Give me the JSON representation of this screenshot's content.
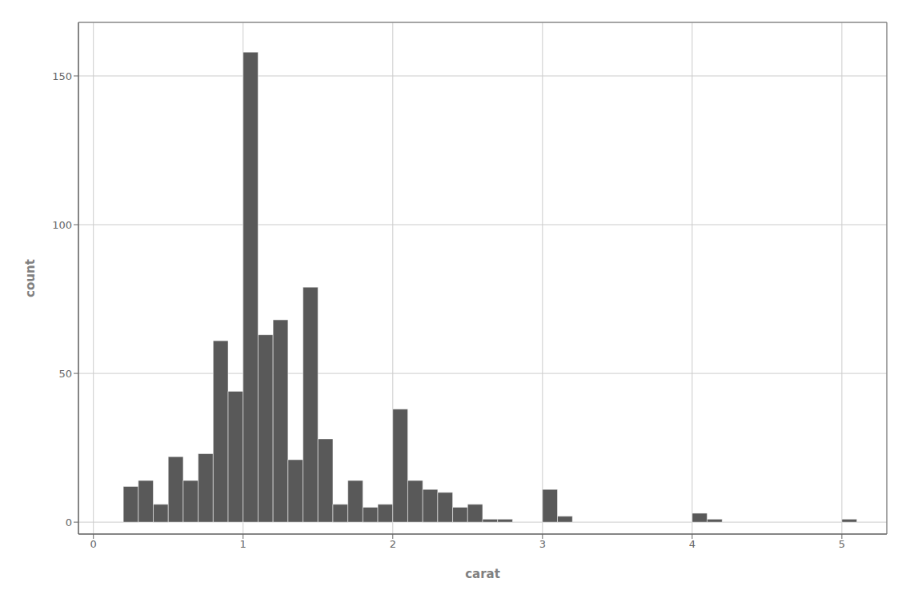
{
  "chart_data": {
    "type": "histogram",
    "xlabel": "carat",
    "ylabel": "count",
    "color": "#595959",
    "grid": true,
    "xlim": [
      -0.1,
      5.3
    ],
    "ylim": [
      -4,
      168
    ],
    "xticks": [
      0,
      1,
      2,
      3,
      4,
      5
    ],
    "yticks": [
      0,
      50,
      100,
      150
    ],
    "bin_width": 0.1,
    "x": [
      0.2,
      0.3,
      0.4,
      0.5,
      0.6,
      0.7,
      0.8,
      0.9,
      1.0,
      1.1,
      1.2,
      1.3,
      1.4,
      1.5,
      1.6,
      1.7,
      1.8,
      1.9,
      2.0,
      2.1,
      2.2,
      2.3,
      2.4,
      2.5,
      2.6,
      2.7,
      3.0,
      3.1,
      4.0,
      4.1,
      5.0
    ],
    "values": [
      12,
      14,
      6,
      22,
      14,
      23,
      61,
      44,
      158,
      63,
      68,
      21,
      79,
      28,
      6,
      14,
      5,
      6,
      38,
      14,
      11,
      10,
      5,
      6,
      1,
      1,
      11,
      2,
      3,
      1,
      1
    ]
  }
}
